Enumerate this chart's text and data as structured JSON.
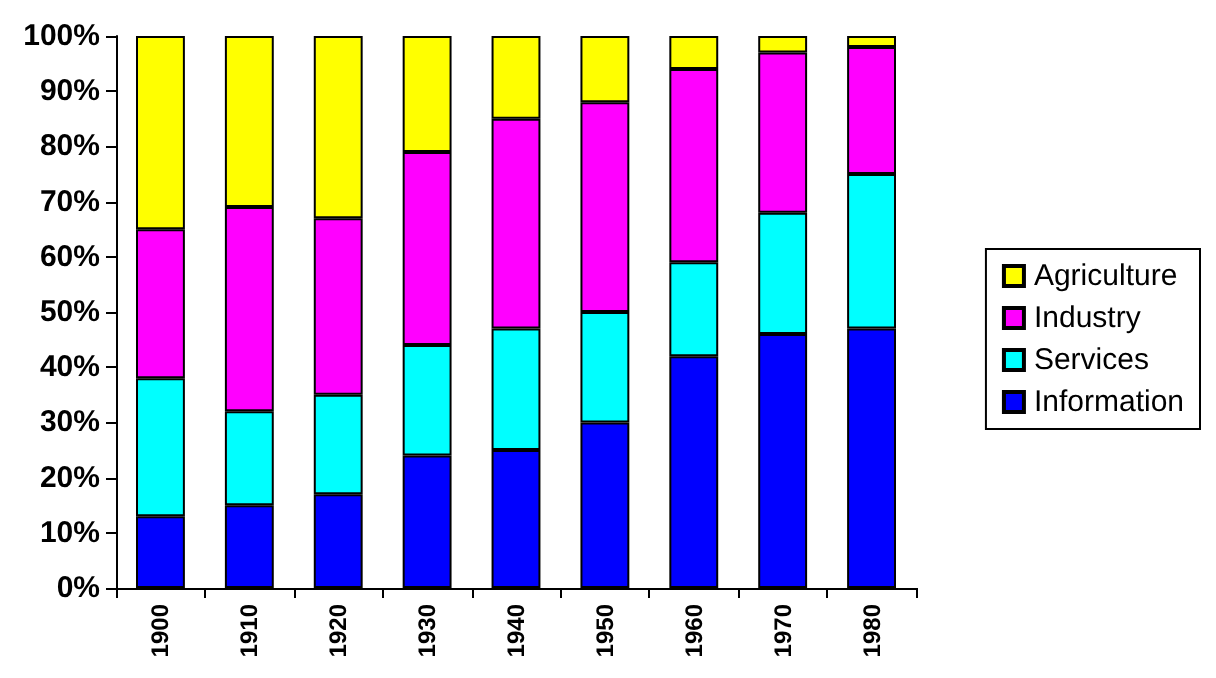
{
  "chart_data": {
    "type": "bar",
    "stacked": true,
    "categories": [
      "1900",
      "1910",
      "1920",
      "1930",
      "1940",
      "1950",
      "1960",
      "1970",
      "1980"
    ],
    "series": [
      {
        "name": "Information",
        "color": "#0000ff",
        "values": [
          13,
          15,
          17,
          24,
          25,
          30,
          42,
          46,
          47
        ]
      },
      {
        "name": "Services",
        "color": "#00ffff",
        "values": [
          25,
          17,
          18,
          20,
          22,
          20,
          17,
          22,
          28
        ]
      },
      {
        "name": "Industry",
        "color": "#ff00ff",
        "values": [
          27,
          37,
          32,
          35,
          38,
          38,
          35,
          29,
          23
        ]
      },
      {
        "name": "Agriculture",
        "color": "#ffff00",
        "values": [
          35,
          31,
          33,
          21,
          15,
          12,
          6,
          3,
          2
        ]
      }
    ],
    "ylim": [
      0,
      100
    ],
    "yticks": [
      {
        "value": 0,
        "label": "0%"
      },
      {
        "value": 10,
        "label": "10%"
      },
      {
        "value": 20,
        "label": "20%"
      },
      {
        "value": 30,
        "label": "30%"
      },
      {
        "value": 40,
        "label": "40%"
      },
      {
        "value": 50,
        "label": "50%"
      },
      {
        "value": 60,
        "label": "60%"
      },
      {
        "value": 70,
        "label": "70%"
      },
      {
        "value": 80,
        "label": "80%"
      },
      {
        "value": 90,
        "label": "90%"
      },
      {
        "value": 100,
        "label": "100%"
      }
    ],
    "grid": false,
    "legend": "right"
  }
}
